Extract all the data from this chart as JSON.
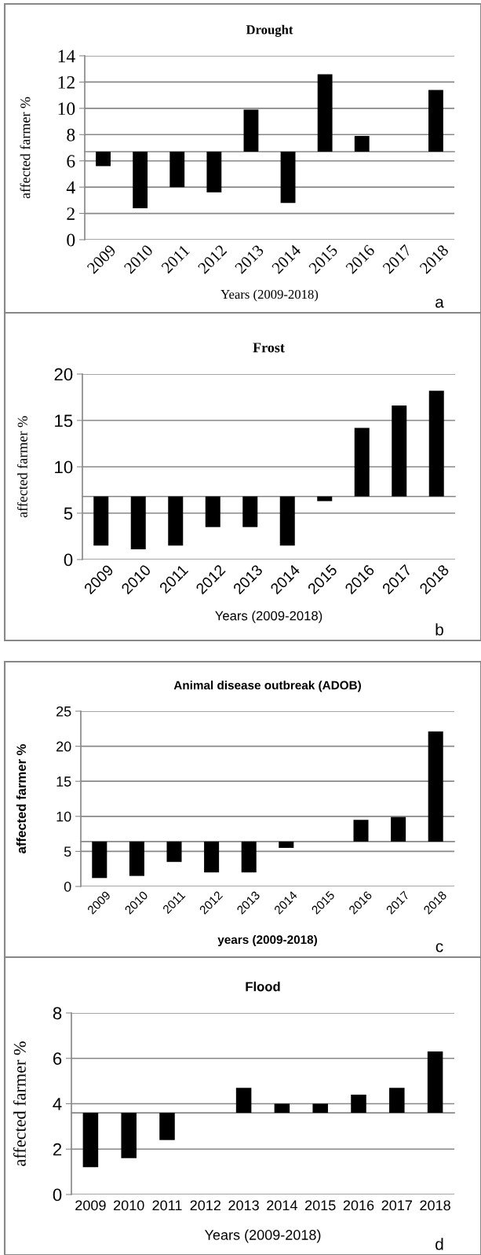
{
  "chart_data": [
    {
      "type": "bar",
      "title": "Drought",
      "xlabel": "Years (2009-2018)",
      "ylabel": "affected farmer %",
      "categories": [
        "2009",
        "2010",
        "2011",
        "2012",
        "2013",
        "2014",
        "2015",
        "2016",
        "2017",
        "2018"
      ],
      "base": [
        6.7,
        6.7,
        6.7,
        6.7,
        6.7,
        6.7,
        6.7,
        6.7,
        null,
        6.7
      ],
      "values": [
        -1.1,
        -4.3,
        -2.7,
        -3.1,
        3.2,
        -3.9,
        5.9,
        1.2,
        null,
        4.7
      ],
      "color": "#000000",
      "ylim": [
        0,
        14
      ],
      "yticks": [
        0,
        2,
        4,
        6,
        8,
        10,
        12,
        14
      ],
      "grid": "y",
      "annotations": [
        "a"
      ]
    },
    {
      "type": "bar",
      "title": "Frost",
      "xlabel": "Years (2009-2018)",
      "ylabel": "affected farmer %",
      "categories": [
        "2009",
        "2010",
        "2011",
        "2012",
        "2013",
        "2014",
        "2015",
        "2016",
        "2017",
        "2018"
      ],
      "base": [
        6.8,
        6.8,
        6.8,
        6.8,
        6.8,
        6.8,
        6.8,
        6.8,
        6.8,
        6.8
      ],
      "values": [
        -5.3,
        -5.7,
        -5.3,
        -3.3,
        -3.3,
        -5.3,
        -0.5,
        7.4,
        9.8,
        11.4
      ],
      "color": "#000000",
      "ylim": [
        0,
        20
      ],
      "yticks": [
        0,
        5,
        10,
        15,
        20
      ],
      "grid": "y",
      "annotations": [
        "b"
      ]
    },
    {
      "type": "bar",
      "title": "Animal disease outbreak (ADOB)",
      "xlabel": "years (2009-2018)",
      "ylabel": "affected farmer %",
      "categories": [
        "2009",
        "2010",
        "2011",
        "2012",
        "2013",
        "2014",
        "2015",
        "2016",
        "2017",
        "2018"
      ],
      "base": [
        6.4,
        6.4,
        6.4,
        6.4,
        6.4,
        6.4,
        null,
        6.4,
        6.4,
        6.4
      ],
      "values": [
        -5.2,
        -4.9,
        -2.9,
        -4.4,
        -4.4,
        -0.9,
        null,
        3.1,
        3.5,
        15.7
      ],
      "color": "#000000",
      "ylim": [
        0,
        25
      ],
      "yticks": [
        0,
        5,
        10,
        15,
        20,
        25
      ],
      "grid": "y",
      "annotations": [
        "c"
      ]
    },
    {
      "type": "bar",
      "title": "Flood",
      "xlabel": "Years (2009-2018)",
      "ylabel": "affected farmer %",
      "categories": [
        "2009",
        "2010",
        "2011",
        "2012",
        "2013",
        "2014",
        "2015",
        "2016",
        "2017",
        "2018"
      ],
      "base": [
        3.6,
        3.6,
        3.6,
        null,
        3.6,
        3.6,
        3.6,
        3.6,
        3.6,
        3.6
      ],
      "values": [
        -2.4,
        -2.0,
        -1.2,
        null,
        1.1,
        0.4,
        0.4,
        0.8,
        1.1,
        2.7
      ],
      "color": "#000000",
      "ylim": [
        0,
        8
      ],
      "yticks": [
        0,
        2,
        4,
        6,
        8
      ],
      "grid": "y",
      "annotations": [
        "d"
      ]
    }
  ]
}
